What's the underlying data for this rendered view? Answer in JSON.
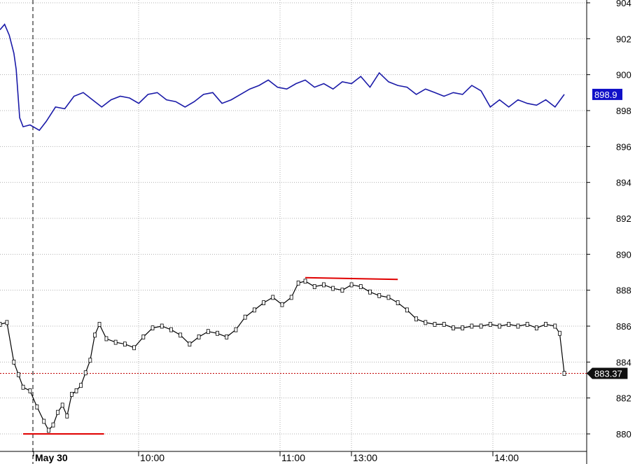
{
  "chart_data": {
    "type": "line",
    "title": "",
    "xlabel": "",
    "ylabel": "",
    "ylim": [
      879.2,
      904
    ],
    "y_ticks": [
      "904",
      "902",
      "900",
      "898",
      "896",
      "894",
      "892",
      "890",
      "888",
      "886",
      "884",
      "882",
      "880"
    ],
    "x_tick_labels": [
      "May 30",
      "10:00",
      "11:00",
      "13:00",
      "14:00"
    ],
    "grid": true,
    "series": [
      {
        "color": "#1a1aa8",
        "last_value_label": "898.9",
        "points": [
          [
            0,
            902.5
          ],
          [
            0.02,
            902.8
          ],
          [
            0.04,
            902.2
          ],
          [
            0.06,
            901.2
          ],
          [
            0.07,
            900.3
          ],
          [
            0.085,
            897.6
          ],
          [
            0.1,
            897.1
          ],
          [
            0.13,
            897.2
          ],
          [
            0.17,
            896.9
          ],
          [
            0.2,
            897.4
          ],
          [
            0.24,
            898.2
          ],
          [
            0.28,
            898.1
          ],
          [
            0.32,
            898.8
          ],
          [
            0.36,
            899.0
          ],
          [
            0.4,
            898.6
          ],
          [
            0.44,
            898.2
          ],
          [
            0.48,
            898.6
          ],
          [
            0.52,
            898.8
          ],
          [
            0.56,
            898.7
          ],
          [
            0.6,
            898.4
          ],
          [
            0.64,
            898.9
          ],
          [
            0.68,
            899.0
          ],
          [
            0.72,
            898.6
          ],
          [
            0.76,
            898.5
          ],
          [
            0.8,
            898.2
          ],
          [
            0.84,
            898.5
          ],
          [
            0.88,
            898.9
          ],
          [
            0.92,
            899.0
          ],
          [
            0.96,
            898.4
          ],
          [
            1.0,
            898.6
          ],
          [
            1.04,
            898.9
          ],
          [
            1.08,
            899.2
          ],
          [
            1.12,
            899.4
          ],
          [
            1.16,
            899.7
          ],
          [
            1.2,
            899.3
          ],
          [
            1.24,
            899.2
          ],
          [
            1.28,
            899.5
          ],
          [
            1.32,
            899.7
          ],
          [
            1.36,
            899.3
          ],
          [
            1.4,
            899.5
          ],
          [
            1.44,
            899.2
          ],
          [
            1.48,
            899.6
          ],
          [
            1.52,
            899.5
          ],
          [
            1.56,
            899.9
          ],
          [
            1.6,
            899.3
          ],
          [
            1.64,
            900.1
          ],
          [
            1.68,
            899.6
          ],
          [
            1.72,
            899.4
          ],
          [
            1.76,
            899.3
          ],
          [
            1.8,
            898.9
          ],
          [
            1.84,
            899.2
          ],
          [
            1.88,
            899.0
          ],
          [
            1.92,
            898.8
          ],
          [
            1.96,
            899.0
          ],
          [
            2.0,
            898.9
          ],
          [
            2.04,
            899.4
          ],
          [
            2.08,
            899.1
          ],
          [
            2.12,
            898.2
          ],
          [
            2.16,
            898.6
          ],
          [
            2.2,
            898.2
          ],
          [
            2.24,
            898.6
          ],
          [
            2.28,
            898.4
          ],
          [
            2.32,
            898.3
          ],
          [
            2.36,
            898.6
          ],
          [
            2.4,
            898.2
          ],
          [
            2.44,
            898.9
          ]
        ]
      },
      {
        "color": "#000000",
        "last_value_label": "883.37",
        "points": [
          [
            0,
            886.1
          ],
          [
            0.03,
            886.2
          ],
          [
            0.06,
            884.0
          ],
          [
            0.08,
            883.3
          ],
          [
            0.1,
            882.6
          ],
          [
            0.13,
            882.4
          ],
          [
            0.16,
            881.5
          ],
          [
            0.19,
            880.7
          ],
          [
            0.21,
            880.2
          ],
          [
            0.23,
            880.5
          ],
          [
            0.25,
            881.2
          ],
          [
            0.27,
            881.6
          ],
          [
            0.29,
            881.0
          ],
          [
            0.31,
            882.2
          ],
          [
            0.33,
            882.4
          ],
          [
            0.35,
            882.7
          ],
          [
            0.37,
            883.4
          ],
          [
            0.39,
            884.1
          ],
          [
            0.41,
            885.5
          ],
          [
            0.43,
            886.1
          ],
          [
            0.46,
            885.3
          ],
          [
            0.5,
            885.1
          ],
          [
            0.54,
            885.0
          ],
          [
            0.58,
            884.8
          ],
          [
            0.62,
            885.4
          ],
          [
            0.66,
            885.9
          ],
          [
            0.7,
            886.0
          ],
          [
            0.74,
            885.8
          ],
          [
            0.78,
            885.5
          ],
          [
            0.82,
            885.0
          ],
          [
            0.86,
            885.4
          ],
          [
            0.9,
            885.7
          ],
          [
            0.94,
            885.6
          ],
          [
            0.98,
            885.4
          ],
          [
            1.02,
            885.8
          ],
          [
            1.06,
            886.5
          ],
          [
            1.1,
            886.9
          ],
          [
            1.14,
            887.3
          ],
          [
            1.18,
            887.6
          ],
          [
            1.22,
            887.2
          ],
          [
            1.26,
            887.6
          ],
          [
            1.29,
            888.4
          ],
          [
            1.32,
            888.5
          ],
          [
            1.36,
            888.2
          ],
          [
            1.4,
            888.3
          ],
          [
            1.44,
            888.1
          ],
          [
            1.48,
            888.0
          ],
          [
            1.52,
            888.3
          ],
          [
            1.56,
            888.2
          ],
          [
            1.6,
            887.9
          ],
          [
            1.64,
            887.7
          ],
          [
            1.68,
            887.6
          ],
          [
            1.72,
            887.3
          ],
          [
            1.76,
            886.9
          ],
          [
            1.8,
            886.4
          ],
          [
            1.84,
            886.2
          ],
          [
            1.88,
            886.1
          ],
          [
            1.92,
            886.1
          ],
          [
            1.96,
            885.9
          ],
          [
            2.0,
            885.9
          ],
          [
            2.04,
            886.0
          ],
          [
            2.08,
            886.0
          ],
          [
            2.12,
            886.1
          ],
          [
            2.16,
            886.0
          ],
          [
            2.2,
            886.1
          ],
          [
            2.24,
            886.0
          ],
          [
            2.28,
            886.1
          ],
          [
            2.32,
            885.9
          ],
          [
            2.36,
            886.1
          ],
          [
            2.4,
            886.0
          ],
          [
            2.42,
            885.6
          ],
          [
            2.44,
            883.37
          ]
        ]
      }
    ],
    "reference_line": {
      "value": 883.37,
      "style": "dashed",
      "color": "#c00000"
    },
    "session_divider_label": "May 30",
    "annotations": [
      {
        "type": "support-line",
        "color": "#e00000",
        "y": 880.0,
        "x_start": 0.1,
        "x_end": 0.45
      },
      {
        "type": "resistance-line",
        "color": "#e00000",
        "y": [
          888.7,
          888.6
        ],
        "x_start": 1.32,
        "x_end": 1.72
      }
    ]
  }
}
